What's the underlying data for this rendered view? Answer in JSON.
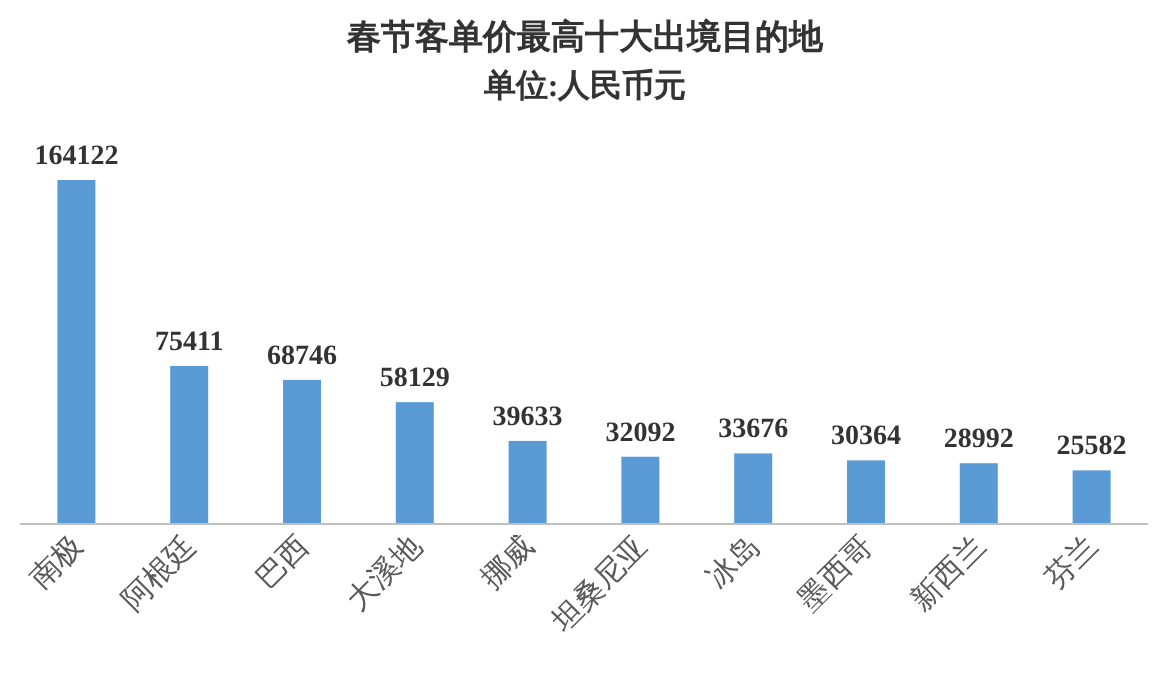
{
  "chart_data": {
    "type": "bar",
    "title": "春节客单价最高十大出境目的地",
    "subtitle": "单位:人民币元",
    "categories": [
      "南极",
      "阿根廷",
      "巴西",
      "大溪地",
      "挪威",
      "坦桑尼亚",
      "冰岛",
      "墨西哥",
      "新西兰",
      "芬兰"
    ],
    "values": [
      164122,
      75411,
      68746,
      58129,
      39633,
      32092,
      33676,
      30364,
      28992,
      25582
    ],
    "color": "#5b9bd5",
    "data_labels": true
  }
}
